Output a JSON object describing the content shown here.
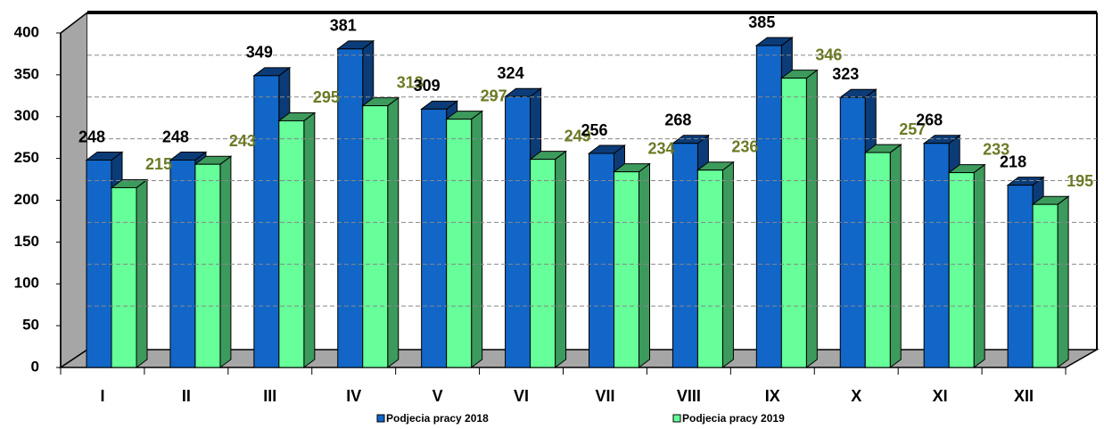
{
  "chart_data": {
    "type": "bar3d",
    "categories": [
      "I",
      "II",
      "III",
      "IV",
      "V",
      "VI",
      "VII",
      "VIII",
      "IX",
      "X",
      "XI",
      "XII"
    ],
    "series": [
      {
        "name": "Podjecia pracy 2018",
        "color": "#1166c8",
        "side": "#0b3c78",
        "label_color": "#000000",
        "values": [
          248,
          248,
          349,
          381,
          309,
          324,
          256,
          268,
          385,
          323,
          268,
          218
        ]
      },
      {
        "name": "Podjecia pracy 2019",
        "color": "#66ff99",
        "side": "#3c9a5c",
        "label_color": "#6b7a24",
        "values": [
          215,
          243,
          295,
          313,
          297,
          249,
          234,
          236,
          346,
          257,
          233,
          195
        ]
      }
    ],
    "ylim": [
      0,
      400
    ],
    "yticks": [
      0,
      50,
      100,
      150,
      200,
      250,
      300,
      350,
      400
    ],
    "grid": true
  }
}
